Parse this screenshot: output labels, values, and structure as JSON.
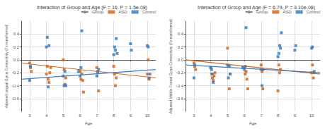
{
  "chart_data": [
    {
      "type": "scatter",
      "title": "Interaction of Group and Age (F = 16, P = 1.5e-08)",
      "xlabel": "Age",
      "ylabel": "Adjusted Lingual Gyrus Connectivity (Fz-transformed)",
      "xlim": [
        2.5,
        10.5
      ],
      "ylim": [
        -0.8,
        0.6
      ],
      "xticks": [
        3,
        4,
        5,
        6,
        7,
        8,
        9,
        10
      ],
      "yticks": [
        -0.6,
        -0.4,
        -0.2,
        {
          "value": 0.0,
          "label": "0.0"
        },
        0.2,
        0.4
      ],
      "grid": true,
      "legend": "upper right",
      "series": [
        {
          "name": "Group",
          "type": "line",
          "color": "#888888",
          "x": [],
          "values": []
        },
        {
          "name": "ASD",
          "type": "scatter",
          "marker": "square",
          "color": "#D4691E",
          "x": [
            3.0,
            3.05,
            3.1,
            4.0,
            4.05,
            4.1,
            4.15,
            4.2,
            4.25,
            5.0,
            5.05,
            5.1,
            5.15,
            6.0,
            6.05,
            6.1,
            6.15,
            6.2,
            7.0,
            7.05,
            7.1,
            8.0,
            8.05,
            8.1,
            8.15,
            10.0,
            10.05,
            10.1
          ],
          "values": [
            -0.05,
            -0.12,
            -0.18,
            -0.22,
            -0.1,
            -0.3,
            -0.35,
            -0.2,
            -0.12,
            0.0,
            -0.15,
            -0.38,
            -0.28,
            -0.18,
            -0.3,
            -0.22,
            -0.32,
            -0.5,
            -0.12,
            -0.2,
            -0.48,
            -0.1,
            -0.22,
            -0.4,
            -0.28,
            -0.22,
            0.0,
            -0.3
          ]
        },
        {
          "name": "Control",
          "type": "scatter",
          "marker": "square",
          "color": "#3A7EC0",
          "x": [
            3.0,
            3.05,
            4.0,
            4.05,
            4.1,
            4.15,
            5.0,
            5.05,
            5.1,
            5.15,
            5.9,
            6.0,
            6.05,
            6.1,
            7.0,
            7.05,
            7.1,
            8.0,
            8.05,
            8.1,
            8.15,
            8.2,
            9.0,
            9.05,
            10.0,
            10.05,
            10.1,
            10.15
          ],
          "values": [
            -0.32,
            -0.1,
            0.2,
            0.35,
            -0.42,
            0.22,
            -0.25,
            -0.4,
            -0.18,
            -0.4,
            -0.18,
            -0.25,
            -0.12,
            0.45,
            -0.25,
            -0.18,
            -0.15,
            0.08,
            0.2,
            0.15,
            0.33,
            0.1,
            0.25,
            0.15,
            0.22,
            0.2,
            -0.28,
            -0.22
          ]
        },
        {
          "name": "ASD",
          "type": "line",
          "color": "#D4691E",
          "x": [
            2.5,
            10.5
          ],
          "values": [
            -0.05,
            -0.28
          ]
        },
        {
          "name": "Control",
          "type": "line",
          "color": "#3A7EC0",
          "x": [
            2.5,
            10.5
          ],
          "values": [
            -0.3,
            -0.15
          ]
        }
      ]
    },
    {
      "type": "scatter",
      "title": "Interaction of Group and Age (F = 6.79, P = 3.10e-08)",
      "xlabel": "Age",
      "ylabel": "Adjusted Middle Frontal Gyrus Connectivity (Fz-transformed)",
      "xlim": [
        2.5,
        10.5
      ],
      "ylim": [
        -0.8,
        0.6
      ],
      "xticks": [
        3,
        4,
        5,
        6,
        7,
        8,
        9,
        10
      ],
      "yticks": [
        -0.6,
        -0.4,
        -0.2,
        {
          "value": 0.0,
          "label": "0.0"
        },
        0.2,
        0.4
      ],
      "grid": true,
      "legend": "upper right",
      "series": [
        {
          "name": "Group",
          "type": "line",
          "color": "#888888",
          "x": [],
          "values": []
        },
        {
          "name": "ASD",
          "type": "scatter",
          "marker": "square",
          "color": "#D4691E",
          "x": [
            3.0,
            3.05,
            3.1,
            4.0,
            4.05,
            4.1,
            4.15,
            4.2,
            4.25,
            5.0,
            5.05,
            5.1,
            5.15,
            6.0,
            6.05,
            6.1,
            6.15,
            6.2,
            7.0,
            7.05,
            7.1,
            8.0,
            8.05,
            8.1,
            8.15,
            10.0,
            10.05,
            10.1
          ],
          "values": [
            -0.05,
            -0.1,
            -0.15,
            -0.12,
            -0.22,
            -0.28,
            -0.32,
            -0.25,
            -0.2,
            0.18,
            -0.1,
            -0.45,
            -0.22,
            -0.12,
            -0.22,
            -0.18,
            -0.3,
            -0.45,
            -0.08,
            -0.18,
            -0.45,
            -0.48,
            -0.08,
            -0.2,
            -0.15,
            -0.2,
            -0.08,
            -0.28
          ]
        },
        {
          "name": "Control",
          "type": "scatter",
          "marker": "square",
          "color": "#3A7EC0",
          "x": [
            3.0,
            3.05,
            4.0,
            4.05,
            4.1,
            4.15,
            5.0,
            5.05,
            5.1,
            5.15,
            5.9,
            6.0,
            6.05,
            6.1,
            7.0,
            7.05,
            7.1,
            8.0,
            8.05,
            8.1,
            8.15,
            8.2,
            9.0,
            9.05,
            10.0,
            10.05,
            10.1,
            10.15
          ],
          "values": [
            -0.28,
            -0.08,
            -0.12,
            -0.15,
            -0.22,
            -0.35,
            -0.08,
            -0.28,
            -0.1,
            -0.22,
            -0.12,
            -0.15,
            -0.1,
            0.5,
            -0.15,
            -0.4,
            -0.15,
            0.05,
            0.1,
            0.22,
            0.18,
            0.42,
            0.15,
            0.22,
            0.18,
            0.2,
            -0.2,
            -0.18
          ]
        },
        {
          "name": "ASD",
          "type": "line",
          "color": "#D4691E",
          "x": [
            2.5,
            10.5
          ],
          "values": [
            0.0,
            -0.22
          ]
        },
        {
          "name": "Control",
          "type": "line",
          "color": "#3A7EC0",
          "x": [
            2.5,
            10.5
          ],
          "values": [
            -0.08,
            -0.2
          ]
        }
      ]
    }
  ]
}
